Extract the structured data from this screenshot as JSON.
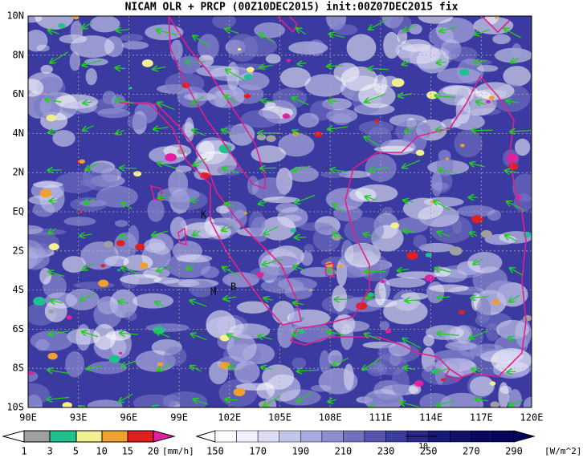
{
  "title": "NICAM OLR + PRCP (00Z10DEC2015) init:00Z07DEC2015 fix",
  "map": {
    "lon_labels": [
      "90E",
      "93E",
      "96E",
      "99E",
      "102E",
      "105E",
      "108E",
      "111E",
      "114E",
      "117E",
      "120E"
    ],
    "lat_labels": [
      "10N",
      "8N",
      "6N",
      "4N",
      "2N",
      "EQ",
      "2S",
      "4S",
      "6S",
      "8S",
      "10S"
    ],
    "markers": [
      "K",
      "M",
      "B"
    ]
  },
  "precip_legend": {
    "labels": [
      "1",
      "3",
      "5",
      "10",
      "15",
      "20"
    ],
    "unit": "[mm/h]"
  },
  "olr_legend": {
    "labels": [
      "150",
      "170",
      "190",
      "210",
      "230",
      "250",
      "270",
      "290"
    ],
    "unit": "[W/m^2]",
    "vector_ref": "10"
  }
}
